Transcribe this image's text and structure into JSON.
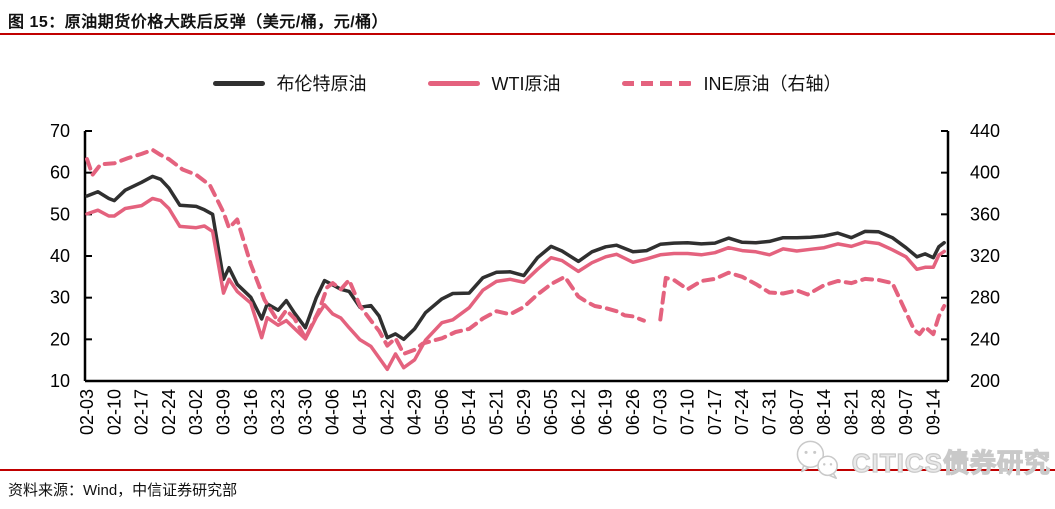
{
  "title": "图 15：原油期货价格大跌后反弹（美元/桶，元/桶）",
  "source_note": "资料来源：Wind，中信证券研究部",
  "watermark": {
    "text": "CITICS债券研究",
    "icon": "wechat-icon"
  },
  "colors": {
    "accent_rule": "#c00000",
    "brent": "#303030",
    "pink": "#e4627e",
    "axis": "#000000",
    "watermark_gray": "#c9c9c9"
  },
  "legend": [
    {
      "id": "brent",
      "label": "布伦特原油",
      "color": "#303030",
      "line": "solid"
    },
    {
      "id": "wti",
      "label": "WTI原油",
      "color": "#e4627e",
      "line": "solid"
    },
    {
      "id": "ine",
      "label": "INE原油（右轴）",
      "color": "#e4627e",
      "line": "dashed"
    }
  ],
  "chart_data": {
    "type": "line",
    "title": "原油期货价格大跌后反弹",
    "units": [
      "美元/桶",
      "元/桶"
    ],
    "x_labels": [
      "02-03",
      "02-10",
      "02-17",
      "02-24",
      "03-02",
      "03-09",
      "03-16",
      "03-23",
      "03-30",
      "04-06",
      "04-15",
      "04-22",
      "04-29",
      "05-06",
      "05-14",
      "05-21",
      "05-29",
      "06-05",
      "06-12",
      "06-19",
      "06-26",
      "07-03",
      "07-10",
      "07-17",
      "07-24",
      "07-31",
      "08-07",
      "08-14",
      "08-21",
      "08-28",
      "09-07",
      "09-14"
    ],
    "left_axis": {
      "min": 10,
      "max": 70,
      "ticks": [
        70,
        60,
        50,
        40,
        30,
        20,
        10
      ]
    },
    "right_axis": {
      "min": 200,
      "max": 440,
      "ticks": [
        440,
        400,
        360,
        320,
        280,
        240,
        200
      ]
    },
    "grid": false,
    "legend_position": "top",
    "series": [
      {
        "id": "brent",
        "name": "布伦特原油",
        "axis": "left",
        "color": "#303030",
        "line": "solid",
        "width": 3.5,
        "points": [
          [
            0,
            54.4
          ],
          [
            0.4,
            55.4
          ],
          [
            0.8,
            53.8
          ],
          [
            1,
            53.3
          ],
          [
            1.4,
            55.8
          ],
          [
            2,
            57.7
          ],
          [
            2.4,
            59.1
          ],
          [
            2.7,
            58.4
          ],
          [
            3,
            56.3
          ],
          [
            3.4,
            52.2
          ],
          [
            4,
            51.9
          ],
          [
            4.3,
            51.1
          ],
          [
            4.6,
            50.0
          ],
          [
            5,
            34.4
          ],
          [
            5.2,
            37.2
          ],
          [
            5.5,
            33.2
          ],
          [
            6,
            30.1
          ],
          [
            6.4,
            24.9
          ],
          [
            6.6,
            28.5
          ],
          [
            7,
            27.0
          ],
          [
            7.3,
            29.3
          ],
          [
            7.6,
            26.3
          ],
          [
            8,
            22.8
          ],
          [
            8.4,
            30.0
          ],
          [
            8.7,
            34.1
          ],
          [
            9,
            33.1
          ],
          [
            9.3,
            32.0
          ],
          [
            9.6,
            31.5
          ],
          [
            10,
            27.7
          ],
          [
            10.4,
            28.1
          ],
          [
            10.7,
            25.6
          ],
          [
            11,
            20.4
          ],
          [
            11.3,
            21.3
          ],
          [
            11.6,
            20.0
          ],
          [
            12,
            22.5
          ],
          [
            12.4,
            26.4
          ],
          [
            13,
            29.7
          ],
          [
            13.4,
            31.0
          ],
          [
            14,
            31.1
          ],
          [
            14.5,
            34.8
          ],
          [
            15,
            36.1
          ],
          [
            15.5,
            36.2
          ],
          [
            16,
            35.3
          ],
          [
            16.5,
            39.6
          ],
          [
            17,
            42.3
          ],
          [
            17.4,
            41.2
          ],
          [
            18,
            38.7
          ],
          [
            18.5,
            41.0
          ],
          [
            19,
            42.2
          ],
          [
            19.4,
            42.6
          ],
          [
            20,
            41.0
          ],
          [
            20.5,
            41.3
          ],
          [
            21,
            42.8
          ],
          [
            21.5,
            43.1
          ],
          [
            22,
            43.2
          ],
          [
            22.5,
            42.9
          ],
          [
            23,
            43.1
          ],
          [
            23.5,
            44.3
          ],
          [
            24,
            43.3
          ],
          [
            24.5,
            43.2
          ],
          [
            25,
            43.5
          ],
          [
            25.5,
            44.4
          ],
          [
            26,
            44.4
          ],
          [
            26.5,
            44.5
          ],
          [
            27,
            44.8
          ],
          [
            27.5,
            45.5
          ],
          [
            28,
            44.4
          ],
          [
            28.5,
            45.9
          ],
          [
            29,
            45.8
          ],
          [
            29.5,
            44.4
          ],
          [
            30,
            42.0
          ],
          [
            30.4,
            39.8
          ],
          [
            30.7,
            40.5
          ],
          [
            31,
            39.6
          ],
          [
            31.2,
            42.2
          ],
          [
            31.4,
            43.2
          ]
        ]
      },
      {
        "id": "wti",
        "name": "WTI原油",
        "axis": "left",
        "color": "#e4627e",
        "line": "solid",
        "width": 3.5,
        "points": [
          [
            0,
            50.1
          ],
          [
            0.4,
            51.0
          ],
          [
            0.8,
            49.6
          ],
          [
            1,
            49.6
          ],
          [
            1.4,
            51.4
          ],
          [
            2,
            52.1
          ],
          [
            2.4,
            53.8
          ],
          [
            2.7,
            53.3
          ],
          [
            3,
            51.4
          ],
          [
            3.4,
            47.1
          ],
          [
            4,
            46.8
          ],
          [
            4.3,
            47.2
          ],
          [
            4.6,
            45.9
          ],
          [
            5,
            31.1
          ],
          [
            5.2,
            34.4
          ],
          [
            5.5,
            31.5
          ],
          [
            6,
            28.7
          ],
          [
            6.4,
            20.4
          ],
          [
            6.6,
            25.2
          ],
          [
            7,
            23.4
          ],
          [
            7.3,
            24.5
          ],
          [
            7.6,
            22.6
          ],
          [
            8,
            20.1
          ],
          [
            8.4,
            25.3
          ],
          [
            8.7,
            28.3
          ],
          [
            9,
            26.1
          ],
          [
            9.3,
            25.1
          ],
          [
            9.6,
            22.8
          ],
          [
            10,
            19.9
          ],
          [
            10.4,
            18.3
          ],
          [
            11,
            12.8
          ],
          [
            11.3,
            16.5
          ],
          [
            11.6,
            13.2
          ],
          [
            12,
            15.1
          ],
          [
            12.4,
            19.8
          ],
          [
            13,
            24.0
          ],
          [
            13.4,
            24.7
          ],
          [
            14,
            27.6
          ],
          [
            14.5,
            31.8
          ],
          [
            15,
            33.9
          ],
          [
            15.5,
            34.4
          ],
          [
            16,
            33.7
          ],
          [
            16.5,
            36.8
          ],
          [
            17,
            39.6
          ],
          [
            17.4,
            38.9
          ],
          [
            18,
            36.3
          ],
          [
            18.5,
            38.4
          ],
          [
            19,
            39.8
          ],
          [
            19.4,
            40.4
          ],
          [
            20,
            38.5
          ],
          [
            20.5,
            39.3
          ],
          [
            21,
            40.3
          ],
          [
            21.5,
            40.6
          ],
          [
            22,
            40.6
          ],
          [
            22.5,
            40.3
          ],
          [
            23,
            40.8
          ],
          [
            23.5,
            42.0
          ],
          [
            24,
            41.3
          ],
          [
            24.5,
            41.0
          ],
          [
            25,
            40.3
          ],
          [
            25.5,
            41.7
          ],
          [
            26,
            41.2
          ],
          [
            26.5,
            41.6
          ],
          [
            27,
            42.0
          ],
          [
            27.5,
            42.9
          ],
          [
            28,
            42.3
          ],
          [
            28.5,
            43.4
          ],
          [
            29,
            43.0
          ],
          [
            29.5,
            41.5
          ],
          [
            30,
            39.8
          ],
          [
            30.4,
            36.8
          ],
          [
            30.7,
            37.3
          ],
          [
            31,
            37.3
          ],
          [
            31.2,
            40.2
          ],
          [
            31.4,
            41.1
          ]
        ]
      },
      {
        "id": "ine",
        "name": "INE原油（右轴）",
        "axis": "right",
        "color": "#e4627e",
        "line": "dashed",
        "width": 4,
        "points": [
          [
            0,
            413
          ],
          [
            0.2,
            398
          ],
          [
            0.5,
            408
          ],
          [
            1,
            409
          ],
          [
            1.5,
            414
          ],
          [
            2,
            418
          ],
          [
            2.4,
            422
          ],
          [
            2.7,
            417
          ],
          [
            3,
            413
          ],
          [
            3.5,
            403
          ],
          [
            4,
            398
          ],
          [
            4.5,
            388
          ],
          [
            5,
            362
          ],
          [
            5.2,
            347
          ],
          [
            5.5,
            355
          ],
          [
            6,
            312
          ],
          [
            6.5,
            278
          ],
          [
            7,
            257
          ],
          [
            7.3,
            268
          ],
          [
            7.6,
            260
          ],
          [
            8,
            241
          ],
          [
            8.5,
            268
          ],
          [
            8.8,
            290
          ],
          [
            9,
            294
          ],
          [
            9.3,
            288
          ],
          [
            9.6,
            297
          ],
          [
            10,
            272
          ],
          [
            10.4,
            258
          ],
          [
            10.7,
            248
          ],
          [
            11,
            234
          ],
          [
            11.3,
            241
          ],
          [
            11.6,
            226
          ],
          [
            12,
            230
          ],
          [
            12.3,
            236
          ],
          [
            13,
            241
          ],
          [
            13.5,
            247
          ],
          [
            14,
            250
          ],
          [
            14.5,
            260
          ],
          [
            15,
            267
          ],
          [
            15.5,
            264
          ],
          [
            16,
            271
          ],
          [
            16.5,
            283
          ],
          [
            17,
            293
          ],
          [
            17.5,
            300
          ],
          [
            18,
            281
          ],
          [
            18.3,
            276
          ],
          [
            18.6,
            272
          ],
          [
            19,
            270
          ],
          [
            19.4,
            267
          ],
          [
            19.7,
            263
          ],
          [
            20,
            262
          ],
          [
            20.4,
            258
          ],
          null,
          [
            21.0,
            259
          ],
          [
            21.2,
            299
          ],
          [
            21.5,
            297
          ],
          [
            22,
            288
          ],
          [
            22.5,
            296
          ],
          [
            23,
            298
          ],
          [
            23.5,
            304
          ],
          [
            24,
            300
          ],
          [
            24.5,
            293
          ],
          [
            25,
            285
          ],
          [
            25.5,
            284
          ],
          [
            26,
            287
          ],
          [
            26.4,
            283
          ],
          [
            27,
            292
          ],
          [
            27.5,
            296
          ],
          [
            28,
            294
          ],
          [
            28.5,
            298
          ],
          [
            29,
            297
          ],
          [
            29.5,
            294
          ],
          [
            30,
            266
          ],
          [
            30.3,
            249
          ],
          [
            30.5,
            245
          ],
          [
            30.7,
            252
          ],
          [
            31,
            245
          ],
          [
            31.2,
            262
          ],
          [
            31.4,
            272
          ]
        ]
      }
    ]
  }
}
